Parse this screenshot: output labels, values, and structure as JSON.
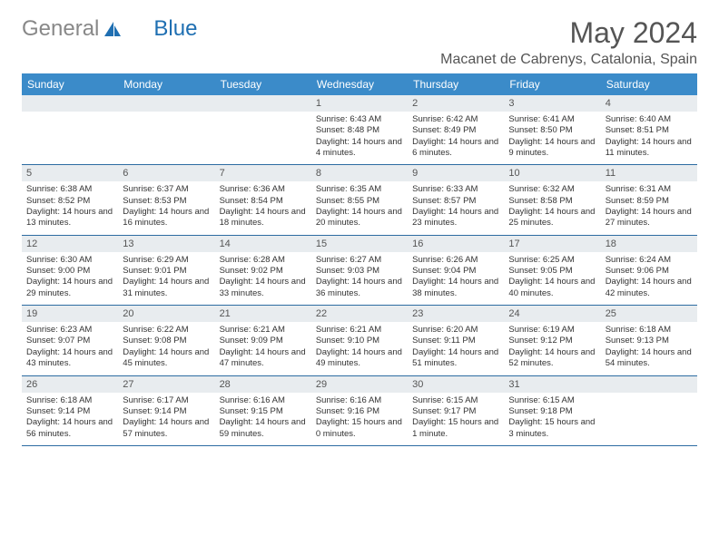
{
  "brand": {
    "part1": "General",
    "part2": "Blue"
  },
  "title": "May 2024",
  "location": "Macanet de Cabrenys, Catalonia, Spain",
  "colors": {
    "header_bg": "#3b8bc9",
    "header_text": "#ffffff",
    "date_bar_bg": "#e8ecef",
    "date_text": "#555555",
    "info_text": "#333333",
    "border": "#2d6ca2",
    "logo_gray": "#888888",
    "logo_blue": "#1f6fb2",
    "background": "#ffffff"
  },
  "typography": {
    "title_fontsize": 32,
    "location_fontsize": 16,
    "dayheader_fontsize": 12,
    "date_fontsize": 11,
    "info_fontsize": 9.5,
    "logo_fontsize": 24
  },
  "day_headers": [
    "Sunday",
    "Monday",
    "Tuesday",
    "Wednesday",
    "Thursday",
    "Friday",
    "Saturday"
  ],
  "weeks": [
    [
      {
        "date": "",
        "sunrise": "",
        "sunset": "",
        "daylight": ""
      },
      {
        "date": "",
        "sunrise": "",
        "sunset": "",
        "daylight": ""
      },
      {
        "date": "",
        "sunrise": "",
        "sunset": "",
        "daylight": ""
      },
      {
        "date": "1",
        "sunrise": "Sunrise: 6:43 AM",
        "sunset": "Sunset: 8:48 PM",
        "daylight": "Daylight: 14 hours and 4 minutes."
      },
      {
        "date": "2",
        "sunrise": "Sunrise: 6:42 AM",
        "sunset": "Sunset: 8:49 PM",
        "daylight": "Daylight: 14 hours and 6 minutes."
      },
      {
        "date": "3",
        "sunrise": "Sunrise: 6:41 AM",
        "sunset": "Sunset: 8:50 PM",
        "daylight": "Daylight: 14 hours and 9 minutes."
      },
      {
        "date": "4",
        "sunrise": "Sunrise: 6:40 AM",
        "sunset": "Sunset: 8:51 PM",
        "daylight": "Daylight: 14 hours and 11 minutes."
      }
    ],
    [
      {
        "date": "5",
        "sunrise": "Sunrise: 6:38 AM",
        "sunset": "Sunset: 8:52 PM",
        "daylight": "Daylight: 14 hours and 13 minutes."
      },
      {
        "date": "6",
        "sunrise": "Sunrise: 6:37 AM",
        "sunset": "Sunset: 8:53 PM",
        "daylight": "Daylight: 14 hours and 16 minutes."
      },
      {
        "date": "7",
        "sunrise": "Sunrise: 6:36 AM",
        "sunset": "Sunset: 8:54 PM",
        "daylight": "Daylight: 14 hours and 18 minutes."
      },
      {
        "date": "8",
        "sunrise": "Sunrise: 6:35 AM",
        "sunset": "Sunset: 8:55 PM",
        "daylight": "Daylight: 14 hours and 20 minutes."
      },
      {
        "date": "9",
        "sunrise": "Sunrise: 6:33 AM",
        "sunset": "Sunset: 8:57 PM",
        "daylight": "Daylight: 14 hours and 23 minutes."
      },
      {
        "date": "10",
        "sunrise": "Sunrise: 6:32 AM",
        "sunset": "Sunset: 8:58 PM",
        "daylight": "Daylight: 14 hours and 25 minutes."
      },
      {
        "date": "11",
        "sunrise": "Sunrise: 6:31 AM",
        "sunset": "Sunset: 8:59 PM",
        "daylight": "Daylight: 14 hours and 27 minutes."
      }
    ],
    [
      {
        "date": "12",
        "sunrise": "Sunrise: 6:30 AM",
        "sunset": "Sunset: 9:00 PM",
        "daylight": "Daylight: 14 hours and 29 minutes."
      },
      {
        "date": "13",
        "sunrise": "Sunrise: 6:29 AM",
        "sunset": "Sunset: 9:01 PM",
        "daylight": "Daylight: 14 hours and 31 minutes."
      },
      {
        "date": "14",
        "sunrise": "Sunrise: 6:28 AM",
        "sunset": "Sunset: 9:02 PM",
        "daylight": "Daylight: 14 hours and 33 minutes."
      },
      {
        "date": "15",
        "sunrise": "Sunrise: 6:27 AM",
        "sunset": "Sunset: 9:03 PM",
        "daylight": "Daylight: 14 hours and 36 minutes."
      },
      {
        "date": "16",
        "sunrise": "Sunrise: 6:26 AM",
        "sunset": "Sunset: 9:04 PM",
        "daylight": "Daylight: 14 hours and 38 minutes."
      },
      {
        "date": "17",
        "sunrise": "Sunrise: 6:25 AM",
        "sunset": "Sunset: 9:05 PM",
        "daylight": "Daylight: 14 hours and 40 minutes."
      },
      {
        "date": "18",
        "sunrise": "Sunrise: 6:24 AM",
        "sunset": "Sunset: 9:06 PM",
        "daylight": "Daylight: 14 hours and 42 minutes."
      }
    ],
    [
      {
        "date": "19",
        "sunrise": "Sunrise: 6:23 AM",
        "sunset": "Sunset: 9:07 PM",
        "daylight": "Daylight: 14 hours and 43 minutes."
      },
      {
        "date": "20",
        "sunrise": "Sunrise: 6:22 AM",
        "sunset": "Sunset: 9:08 PM",
        "daylight": "Daylight: 14 hours and 45 minutes."
      },
      {
        "date": "21",
        "sunrise": "Sunrise: 6:21 AM",
        "sunset": "Sunset: 9:09 PM",
        "daylight": "Daylight: 14 hours and 47 minutes."
      },
      {
        "date": "22",
        "sunrise": "Sunrise: 6:21 AM",
        "sunset": "Sunset: 9:10 PM",
        "daylight": "Daylight: 14 hours and 49 minutes."
      },
      {
        "date": "23",
        "sunrise": "Sunrise: 6:20 AM",
        "sunset": "Sunset: 9:11 PM",
        "daylight": "Daylight: 14 hours and 51 minutes."
      },
      {
        "date": "24",
        "sunrise": "Sunrise: 6:19 AM",
        "sunset": "Sunset: 9:12 PM",
        "daylight": "Daylight: 14 hours and 52 minutes."
      },
      {
        "date": "25",
        "sunrise": "Sunrise: 6:18 AM",
        "sunset": "Sunset: 9:13 PM",
        "daylight": "Daylight: 14 hours and 54 minutes."
      }
    ],
    [
      {
        "date": "26",
        "sunrise": "Sunrise: 6:18 AM",
        "sunset": "Sunset: 9:14 PM",
        "daylight": "Daylight: 14 hours and 56 minutes."
      },
      {
        "date": "27",
        "sunrise": "Sunrise: 6:17 AM",
        "sunset": "Sunset: 9:14 PM",
        "daylight": "Daylight: 14 hours and 57 minutes."
      },
      {
        "date": "28",
        "sunrise": "Sunrise: 6:16 AM",
        "sunset": "Sunset: 9:15 PM",
        "daylight": "Daylight: 14 hours and 59 minutes."
      },
      {
        "date": "29",
        "sunrise": "Sunrise: 6:16 AM",
        "sunset": "Sunset: 9:16 PM",
        "daylight": "Daylight: 15 hours and 0 minutes."
      },
      {
        "date": "30",
        "sunrise": "Sunrise: 6:15 AM",
        "sunset": "Sunset: 9:17 PM",
        "daylight": "Daylight: 15 hours and 1 minute."
      },
      {
        "date": "31",
        "sunrise": "Sunrise: 6:15 AM",
        "sunset": "Sunset: 9:18 PM",
        "daylight": "Daylight: 15 hours and 3 minutes."
      },
      {
        "date": "",
        "sunrise": "",
        "sunset": "",
        "daylight": ""
      }
    ]
  ]
}
